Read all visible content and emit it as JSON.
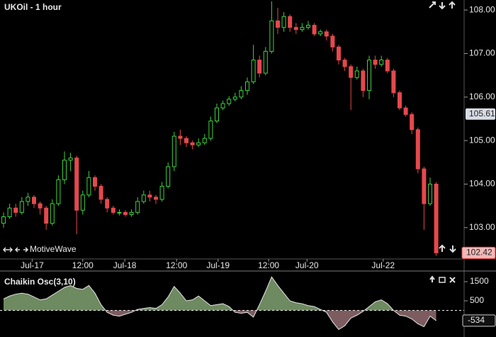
{
  "chart_data": [
    {
      "type": "candlestick",
      "title": "UKOil - 1 hour",
      "brand": "MotiveWave",
      "open": [
        103.1,
        103.25,
        103.45,
        103.35,
        103.6,
        103.7,
        103.55,
        103.45,
        103.1,
        103.55,
        104.1,
        104.55,
        104.6,
        103.4,
        103.75,
        104.15,
        103.95,
        103.65,
        103.45,
        103.35,
        103.35,
        103.3,
        103.35,
        103.6,
        103.75,
        103.7,
        103.65,
        103.95,
        104.4,
        105.1,
        105.05,
        104.95,
        104.9,
        104.95,
        105.05,
        105.45,
        105.75,
        105.85,
        105.95,
        106.0,
        106.15,
        106.35,
        106.85,
        106.55,
        107.05,
        107.75,
        107.6,
        107.85,
        107.6,
        107.55,
        107.6,
        107.65,
        107.45,
        107.5,
        107.4,
        107.15,
        106.85,
        106.7,
        106.45,
        106.6,
        106.15,
        106.85,
        106.75,
        106.85,
        106.6,
        106.1,
        105.75,
        105.6,
        105.25,
        104.35,
        103.55,
        104.0
      ],
      "high": [
        103.35,
        103.55,
        103.55,
        103.7,
        103.8,
        103.75,
        103.6,
        103.5,
        103.65,
        104.2,
        104.75,
        104.72,
        104.65,
        103.85,
        104.3,
        104.2,
        104.0,
        103.7,
        103.5,
        103.42,
        103.4,
        103.42,
        103.7,
        103.85,
        103.85,
        103.75,
        104.05,
        104.5,
        105.2,
        105.25,
        105.1,
        105.0,
        105.05,
        105.15,
        105.55,
        105.85,
        105.92,
        106.02,
        106.1,
        106.25,
        106.45,
        107.2,
        106.95,
        107.15,
        108.2,
        108.05,
        107.95,
        107.9,
        107.7,
        107.7,
        107.75,
        107.7,
        107.55,
        107.55,
        107.45,
        107.2,
        106.9,
        106.75,
        106.7,
        106.65,
        106.95,
        106.95,
        106.95,
        106.9,
        106.65,
        106.15,
        105.8,
        105.65,
        105.3,
        104.4,
        104.15,
        104.05
      ],
      "low": [
        103.0,
        103.2,
        103.25,
        103.3,
        103.5,
        103.45,
        103.3,
        102.95,
        103.05,
        103.5,
        104.0,
        104.3,
        102.85,
        103.3,
        103.7,
        103.85,
        103.55,
        103.35,
        103.3,
        103.28,
        103.25,
        103.25,
        103.3,
        103.55,
        103.6,
        103.55,
        103.6,
        103.9,
        104.3,
        104.9,
        104.85,
        104.8,
        104.85,
        104.9,
        105.0,
        105.4,
        105.7,
        105.8,
        105.9,
        105.95,
        106.05,
        106.3,
        106.45,
        106.5,
        107.0,
        107.45,
        107.5,
        107.5,
        107.45,
        107.5,
        107.55,
        107.4,
        107.4,
        107.3,
        107.05,
        106.75,
        106.6,
        105.7,
        106.4,
        106.0,
        105.95,
        106.65,
        106.7,
        106.55,
        106.0,
        105.7,
        105.55,
        105.15,
        104.25,
        102.95,
        103.5,
        102.35
      ],
      "close": [
        103.25,
        103.45,
        103.35,
        103.6,
        103.7,
        103.55,
        103.45,
        103.1,
        103.55,
        104.1,
        104.55,
        104.6,
        103.4,
        103.75,
        104.15,
        103.95,
        103.65,
        103.45,
        103.35,
        103.35,
        103.3,
        103.35,
        103.6,
        103.75,
        103.7,
        103.65,
        103.95,
        104.4,
        105.1,
        105.05,
        104.95,
        104.9,
        104.95,
        105.05,
        105.45,
        105.75,
        105.85,
        105.95,
        106.0,
        106.15,
        106.35,
        106.85,
        106.55,
        107.05,
        107.75,
        107.6,
        107.85,
        107.6,
        107.55,
        107.6,
        107.65,
        107.45,
        107.5,
        107.4,
        107.15,
        106.85,
        106.7,
        106.45,
        106.6,
        106.15,
        106.85,
        106.75,
        106.85,
        106.6,
        106.1,
        105.75,
        105.6,
        105.25,
        104.35,
        103.55,
        104.0,
        102.42
      ],
      "up_color": "#3fd13f",
      "down_color": "#e5484d",
      "ylim": [
        102.28,
        108.23
      ],
      "yticks": [
        {
          "value": 103,
          "label": "103.00"
        },
        {
          "value": 104,
          "label": "104.00"
        },
        {
          "value": 105,
          "label": "105.00"
        },
        {
          "value": 106,
          "label": "106.00"
        },
        {
          "value": 107,
          "label": "107.00"
        },
        {
          "value": 108,
          "label": "108.00"
        }
      ],
      "xticks": [
        {
          "value": 4.7,
          "label": "Jul-17"
        },
        {
          "value": 13,
          "label": "12:00"
        },
        {
          "value": 19.9,
          "label": "Jul-18"
        },
        {
          "value": 28.4,
          "label": "12:00"
        },
        {
          "value": 35.2,
          "label": "Jul-19"
        },
        {
          "value": 43.5,
          "label": "12:00"
        },
        {
          "value": 49.8,
          "label": "Jul-20"
        },
        {
          "value": 62.3,
          "label": "Jul-22"
        }
      ],
      "crosshair_price": {
        "value": 105.61,
        "label": "105.61"
      },
      "last_price": {
        "value": 102.42,
        "label": "102.42"
      }
    },
    {
      "type": "area",
      "title": "Chaikin Osc(3,10)",
      "values": [
        600,
        750,
        850,
        900,
        850,
        700,
        550,
        600,
        800,
        1000,
        1200,
        1300,
        1150,
        1100,
        1300,
        900,
        300,
        -100,
        -250,
        -300,
        -200,
        -100,
        50,
        100,
        150,
        100,
        300,
        700,
        1250,
        900,
        500,
        550,
        750,
        500,
        250,
        300,
        350,
        200,
        -100,
        -150,
        -100,
        -350,
        300,
        1000,
        1750,
        1300,
        900,
        500,
        400,
        350,
        250,
        200,
        50,
        -100,
        -600,
        -1000,
        -800,
        -400,
        -250,
        -50,
        200,
        450,
        550,
        350,
        0,
        -250,
        -300,
        -450,
        -700,
        -850,
        -300,
        -534
      ],
      "positive_color": "#6e8a60",
      "negative_color": "#7d5c60",
      "line_color": "#e6e6e6",
      "ylim": [
        -1389,
        2019
      ],
      "yticks": [
        500,
        1500
      ],
      "last_value": -534
    }
  ]
}
